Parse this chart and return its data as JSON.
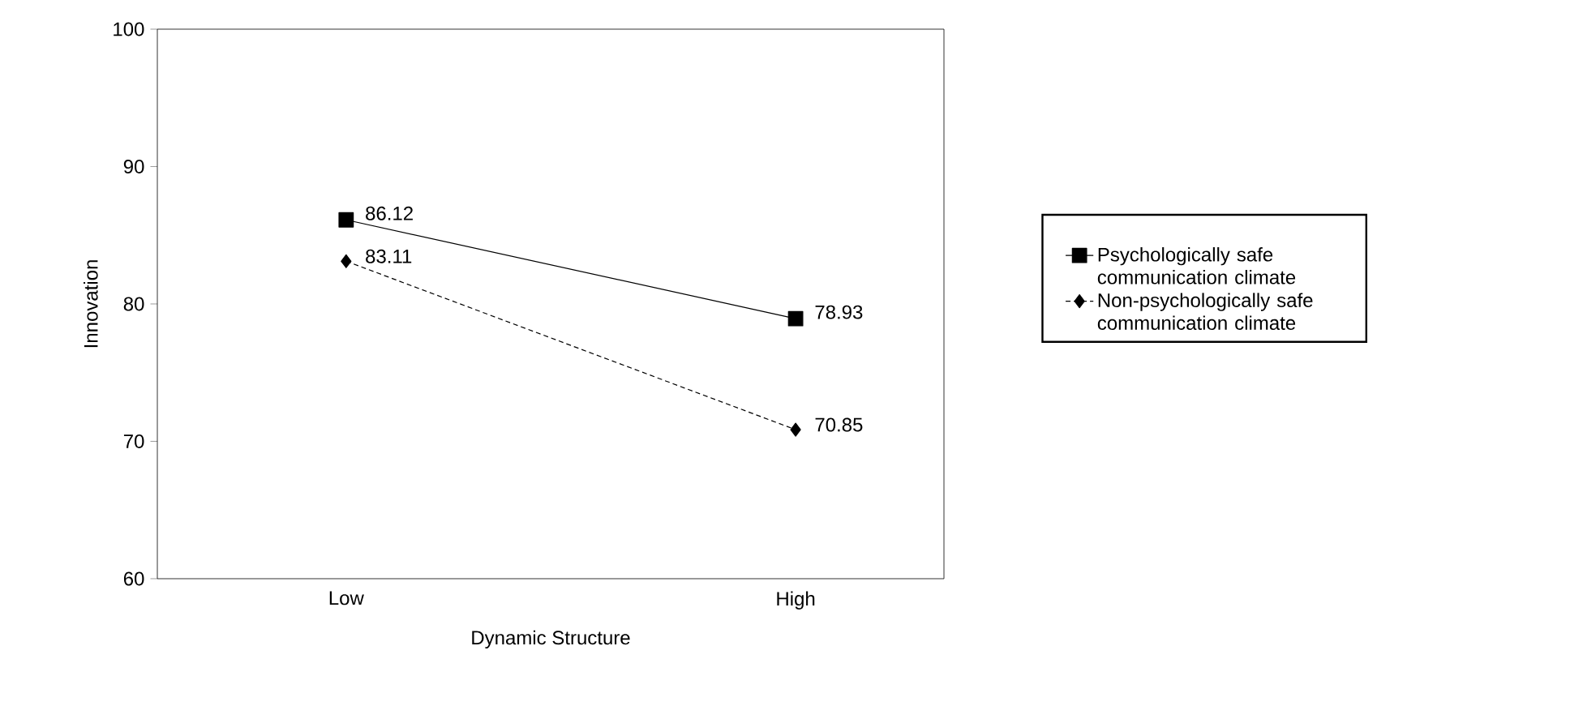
{
  "chart_data": {
    "type": "line",
    "xlabel": "Dynamic Structure",
    "ylabel": "Innovation",
    "categories": [
      "Low",
      "High"
    ],
    "series": [
      {
        "name": "Psychologically safe communication climate",
        "color": "#000000",
        "values": [
          86.12,
          78.93
        ],
        "marker": "square",
        "line_style": "solid"
      },
      {
        "name": "Non-psychologically safe communication climate",
        "color": "#000000",
        "values": [
          83.11,
          70.85
        ],
        "marker": "diamond",
        "line_style": "dashed"
      }
    ],
    "ylim": [
      60,
      100
    ],
    "yticks": [
      60,
      70,
      80,
      90,
      100
    ],
    "grid": false,
    "legend": "right",
    "data_labels": true
  }
}
